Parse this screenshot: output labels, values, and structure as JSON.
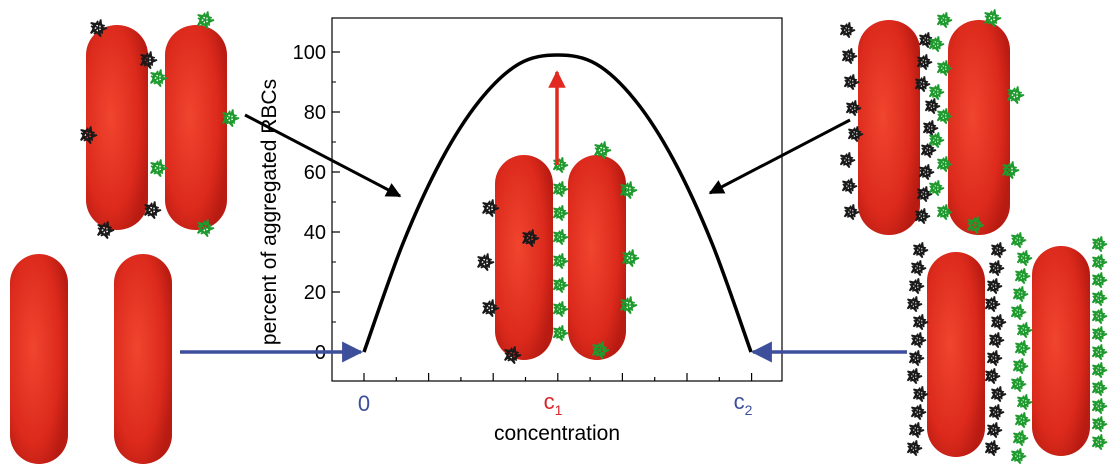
{
  "chart_data": {
    "type": "line",
    "xlabel": "concentration",
    "ylabel": "percent of aggregated RBCs",
    "ylim": [
      0,
      100
    ],
    "yticks": [
      0,
      20,
      40,
      60,
      80,
      100
    ],
    "x_labels": [
      {
        "main": "0",
        "sub": "",
        "color": "#3d4f9b"
      },
      {
        "main": "c",
        "sub": "1",
        "color": "#d7262b"
      },
      {
        "main": "c",
        "sub": "2",
        "color": "#3d4f9b"
      }
    ],
    "x": [
      0,
      0.1,
      0.2,
      0.3,
      0.4,
      0.5,
      0.6,
      0.7,
      0.8,
      0.9,
      1.0
    ],
    "values": [
      0,
      36,
      64,
      84,
      96,
      99,
      96,
      84,
      64,
      36,
      0
    ],
    "line_color": "#000000",
    "grid": false,
    "legend": "none"
  },
  "colors": {
    "cell": "#e2291f",
    "cell_highlight": "#f4553f",
    "polymer_black": "#1a1a1a",
    "polymer_green": "#1f9a2e",
    "arrow_blue": "#3d4f9b",
    "arrow_red": "#e2291f",
    "arrow_black": "#000000"
  }
}
